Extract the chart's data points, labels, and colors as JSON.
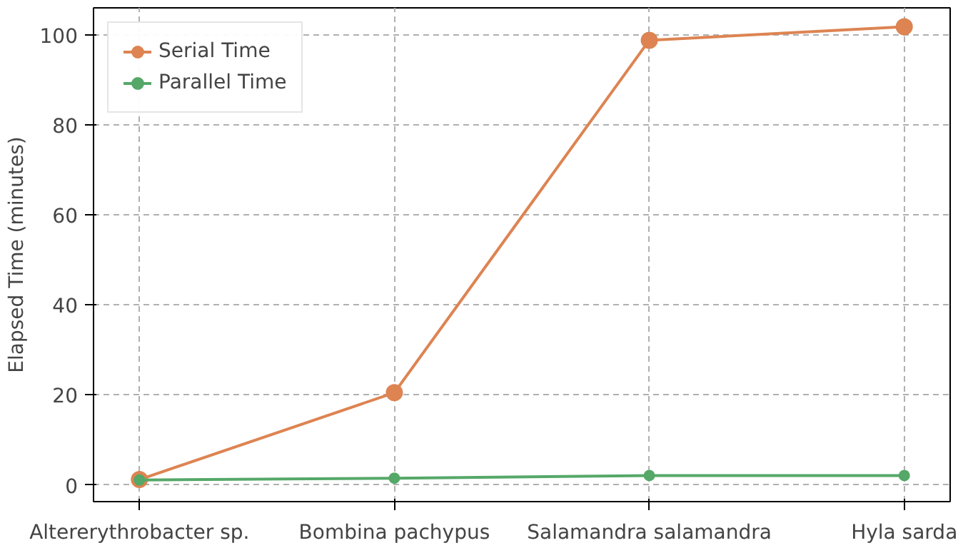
{
  "chart_data": {
    "type": "line",
    "ylabel": "Elapsed Time (minutes)",
    "categories": [
      "Altererythrobacter sp.",
      "Bombina pachypus",
      "Salamandra salamandra",
      "Hyla sarda"
    ],
    "series": [
      {
        "name": "Serial Time",
        "color": "#dd8452",
        "values": [
          1.2,
          20.5,
          98.8,
          101.8
        ]
      },
      {
        "name": "Parallel Time",
        "color": "#55a868",
        "values": [
          1.1,
          1.5,
          2.1,
          2.1
        ]
      }
    ],
    "ylim": [
      -3.7,
      106
    ],
    "yticks": [
      0,
      20,
      40,
      60,
      80,
      100
    ],
    "grid": true,
    "legend": "top left",
    "marker": "circle",
    "line_style": "solid"
  }
}
